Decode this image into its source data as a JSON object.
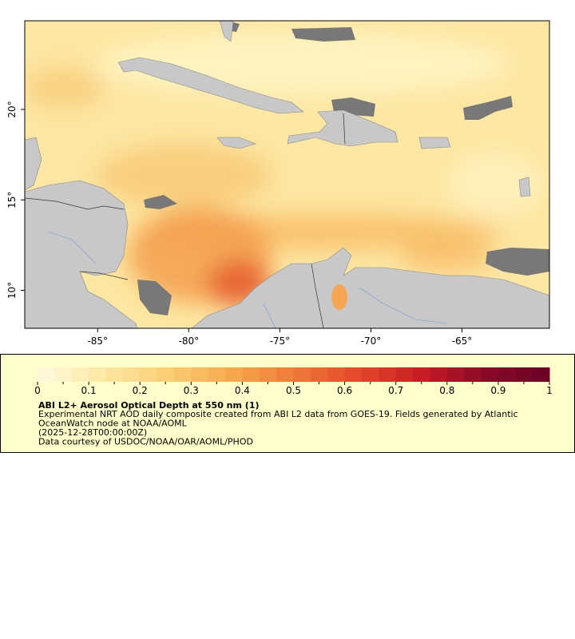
{
  "map": {
    "xlim": [
      -89,
      -60.2
    ],
    "ylim": [
      7.9,
      24.9
    ],
    "xticks": [
      {
        "value": -85,
        "label": "-85°"
      },
      {
        "value": -80,
        "label": "-80°"
      },
      {
        "value": -75,
        "label": "-75°"
      },
      {
        "value": -70,
        "label": "-70°"
      },
      {
        "value": -65,
        "label": "-65°"
      }
    ],
    "yticks": [
      {
        "value": 10,
        "label": "10°"
      },
      {
        "value": 15,
        "label": "15°"
      },
      {
        "value": 20,
        "label": "20°"
      }
    ]
  },
  "colorbar": {
    "range": [
      0,
      1
    ],
    "ticks": [
      0,
      0.1,
      0.2,
      0.3,
      0.4,
      0.5,
      0.6,
      0.7,
      0.8,
      0.9,
      1
    ],
    "colors": [
      "#fffbe0",
      "#fde8a4",
      "#fbcf74",
      "#f7a94d",
      "#f07a38",
      "#e34a2a",
      "#c81d25",
      "#8a0a26",
      "#6b0028"
    ]
  },
  "caption": {
    "title": "ABI L2+ Aerosol Optical Depth at 550 nm (1)",
    "lines": [
      "Experimental NRT AOD daily composite created from ABI L2 data from GOES-19. Fields generated by Atlantic",
      "OceanWatch node at NOAA/AOML",
      "(2025-12-28T00:00:00Z)",
      "Data courtesy of USDOC/NOAA/OAR/AOML/PHOD"
    ]
  }
}
